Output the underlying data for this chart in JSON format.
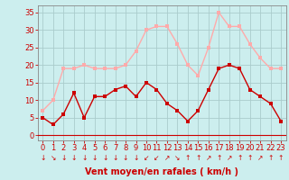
{
  "x": [
    0,
    1,
    2,
    3,
    4,
    5,
    6,
    7,
    8,
    9,
    10,
    11,
    12,
    13,
    14,
    15,
    16,
    17,
    18,
    19,
    20,
    21,
    22,
    23
  ],
  "y_moyen": [
    5,
    3,
    6,
    12,
    5,
    11,
    11,
    13,
    14,
    11,
    15,
    13,
    9,
    7,
    4,
    7,
    13,
    19,
    20,
    19,
    13,
    11,
    9,
    4
  ],
  "y_rafales": [
    7,
    10,
    19,
    19,
    20,
    19,
    19,
    19,
    20,
    24,
    30,
    31,
    31,
    26,
    20,
    17,
    25,
    35,
    31,
    31,
    26,
    22,
    19,
    19
  ],
  "color_moyen": "#cc0000",
  "color_rafales": "#ffaaaa",
  "bg_color": "#cceeee",
  "grid_color": "#aacccc",
  "xlabel": "Vent moyen/en rafales ( km/h )",
  "xlabel_color": "#cc0000",
  "ylabel_ticks": [
    0,
    5,
    10,
    15,
    20,
    25,
    30,
    35
  ],
  "ylim": [
    -1.5,
    37
  ],
  "xlim": [
    -0.5,
    23.5
  ],
  "tick_color": "#cc0000",
  "spine_color": "#888888",
  "marker_size": 2.5,
  "linewidth": 1.0,
  "font_size_ticks": 6,
  "font_size_xlabel": 7,
  "arrows": [
    "↓",
    "↘",
    "↓",
    "↓",
    "↓",
    "↓",
    "↓",
    "↓",
    "↓",
    "↓",
    "↙",
    "↙",
    "↗",
    "↘",
    "↑",
    "↑",
    "↗",
    "↑",
    "↗",
    "↑",
    "↑",
    "↗",
    "↑",
    "↑"
  ]
}
